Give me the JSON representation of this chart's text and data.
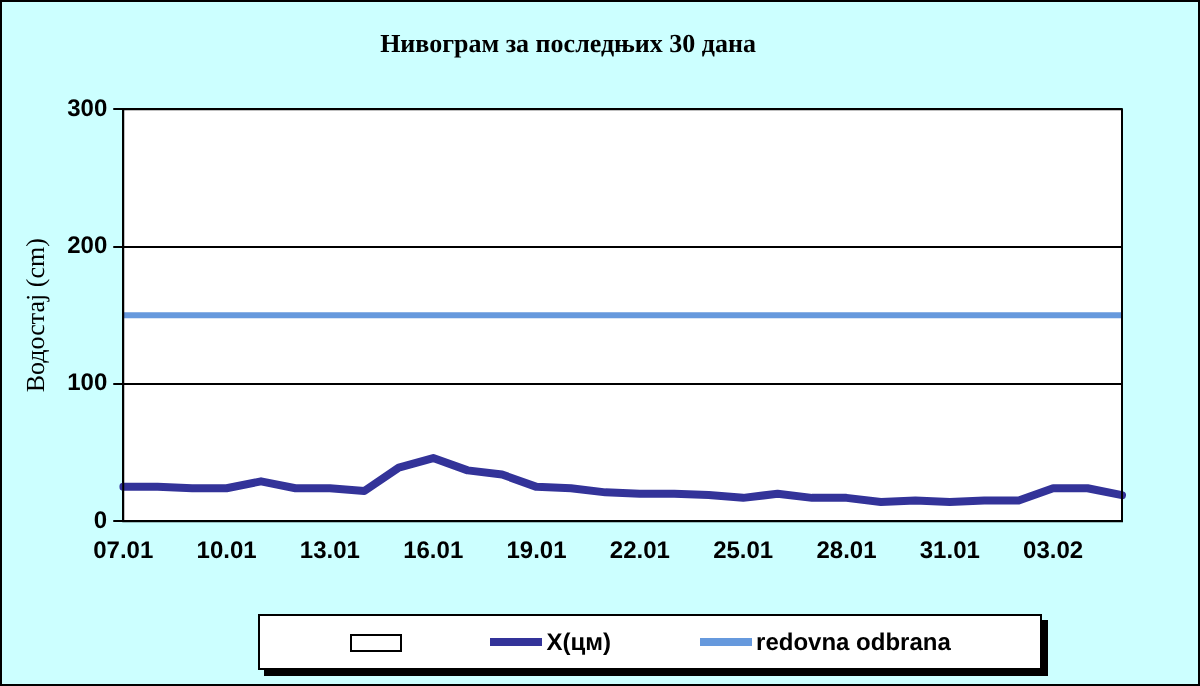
{
  "chart_data": {
    "type": "line",
    "title": "Нивограм за последњих 30 дана",
    "ylabel": "Водостај (cm)",
    "categories": [
      "07.01",
      null,
      null,
      "10.01",
      null,
      null,
      "13.01",
      null,
      null,
      "16.01",
      null,
      null,
      "19.01",
      null,
      null,
      "22.01",
      null,
      null,
      "25.01",
      null,
      null,
      "28.01",
      null,
      null,
      "31.01",
      null,
      null,
      "03.02",
      null,
      null
    ],
    "series": [
      {
        "name": "X(цм)",
        "color": "#333399",
        "values": [
          25,
          25,
          24,
          24,
          29,
          24,
          24,
          22,
          39,
          46,
          37,
          34,
          25,
          24,
          21,
          20,
          20,
          19,
          17,
          20,
          17,
          17,
          14,
          15,
          14,
          15,
          15,
          24,
          24,
          19
        ]
      }
    ],
    "ref_lines": [
      {
        "axis": "y",
        "value": 150,
        "label": "redovna odbrana",
        "color": "#6699dd"
      }
    ],
    "ylim": [
      0,
      300
    ],
    "yticks": [
      0,
      100,
      200,
      300
    ],
    "grid": "y",
    "legend": "bottom",
    "marker": "none",
    "line_style": "solid"
  }
}
